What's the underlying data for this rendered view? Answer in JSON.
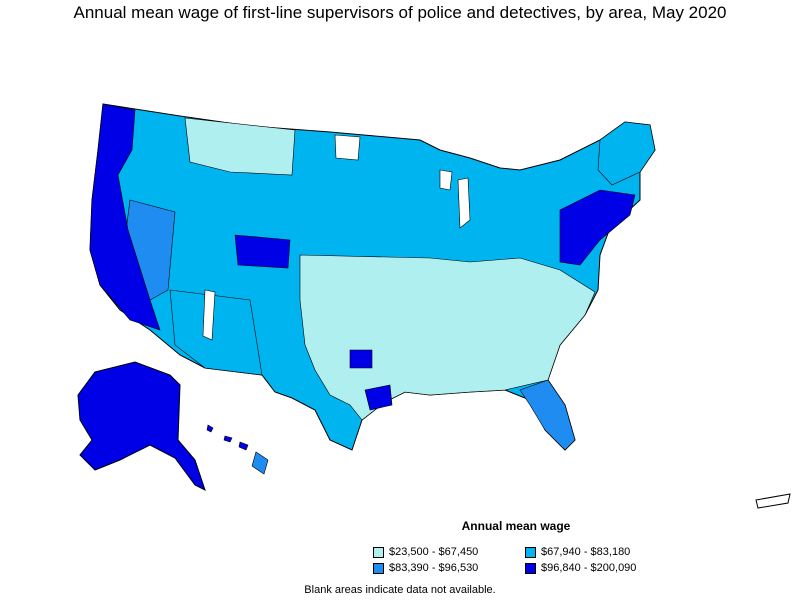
{
  "title": "Annual mean wage of first-line supervisors of police and detectives, by area, May 2020",
  "legend": {
    "title": "Annual mean wage",
    "items": [
      {
        "label": "$23,500 - $67,450",
        "color": "#b0eff0"
      },
      {
        "label": "$67,940 - $83,180",
        "color": "#00b4f0"
      },
      {
        "label": "$83,390 - $96,530",
        "color": "#1e8cf0"
      },
      {
        "label": "$96,840 - $200,090",
        "color": "#0000e6"
      }
    ]
  },
  "footnote": "Blank areas indicate data not available.",
  "colors": {
    "low": "#b0eff0",
    "mid_low": "#00b4f0",
    "mid_high": "#1e8cf0",
    "high": "#0000e6",
    "no_data": "#ffffff"
  }
}
